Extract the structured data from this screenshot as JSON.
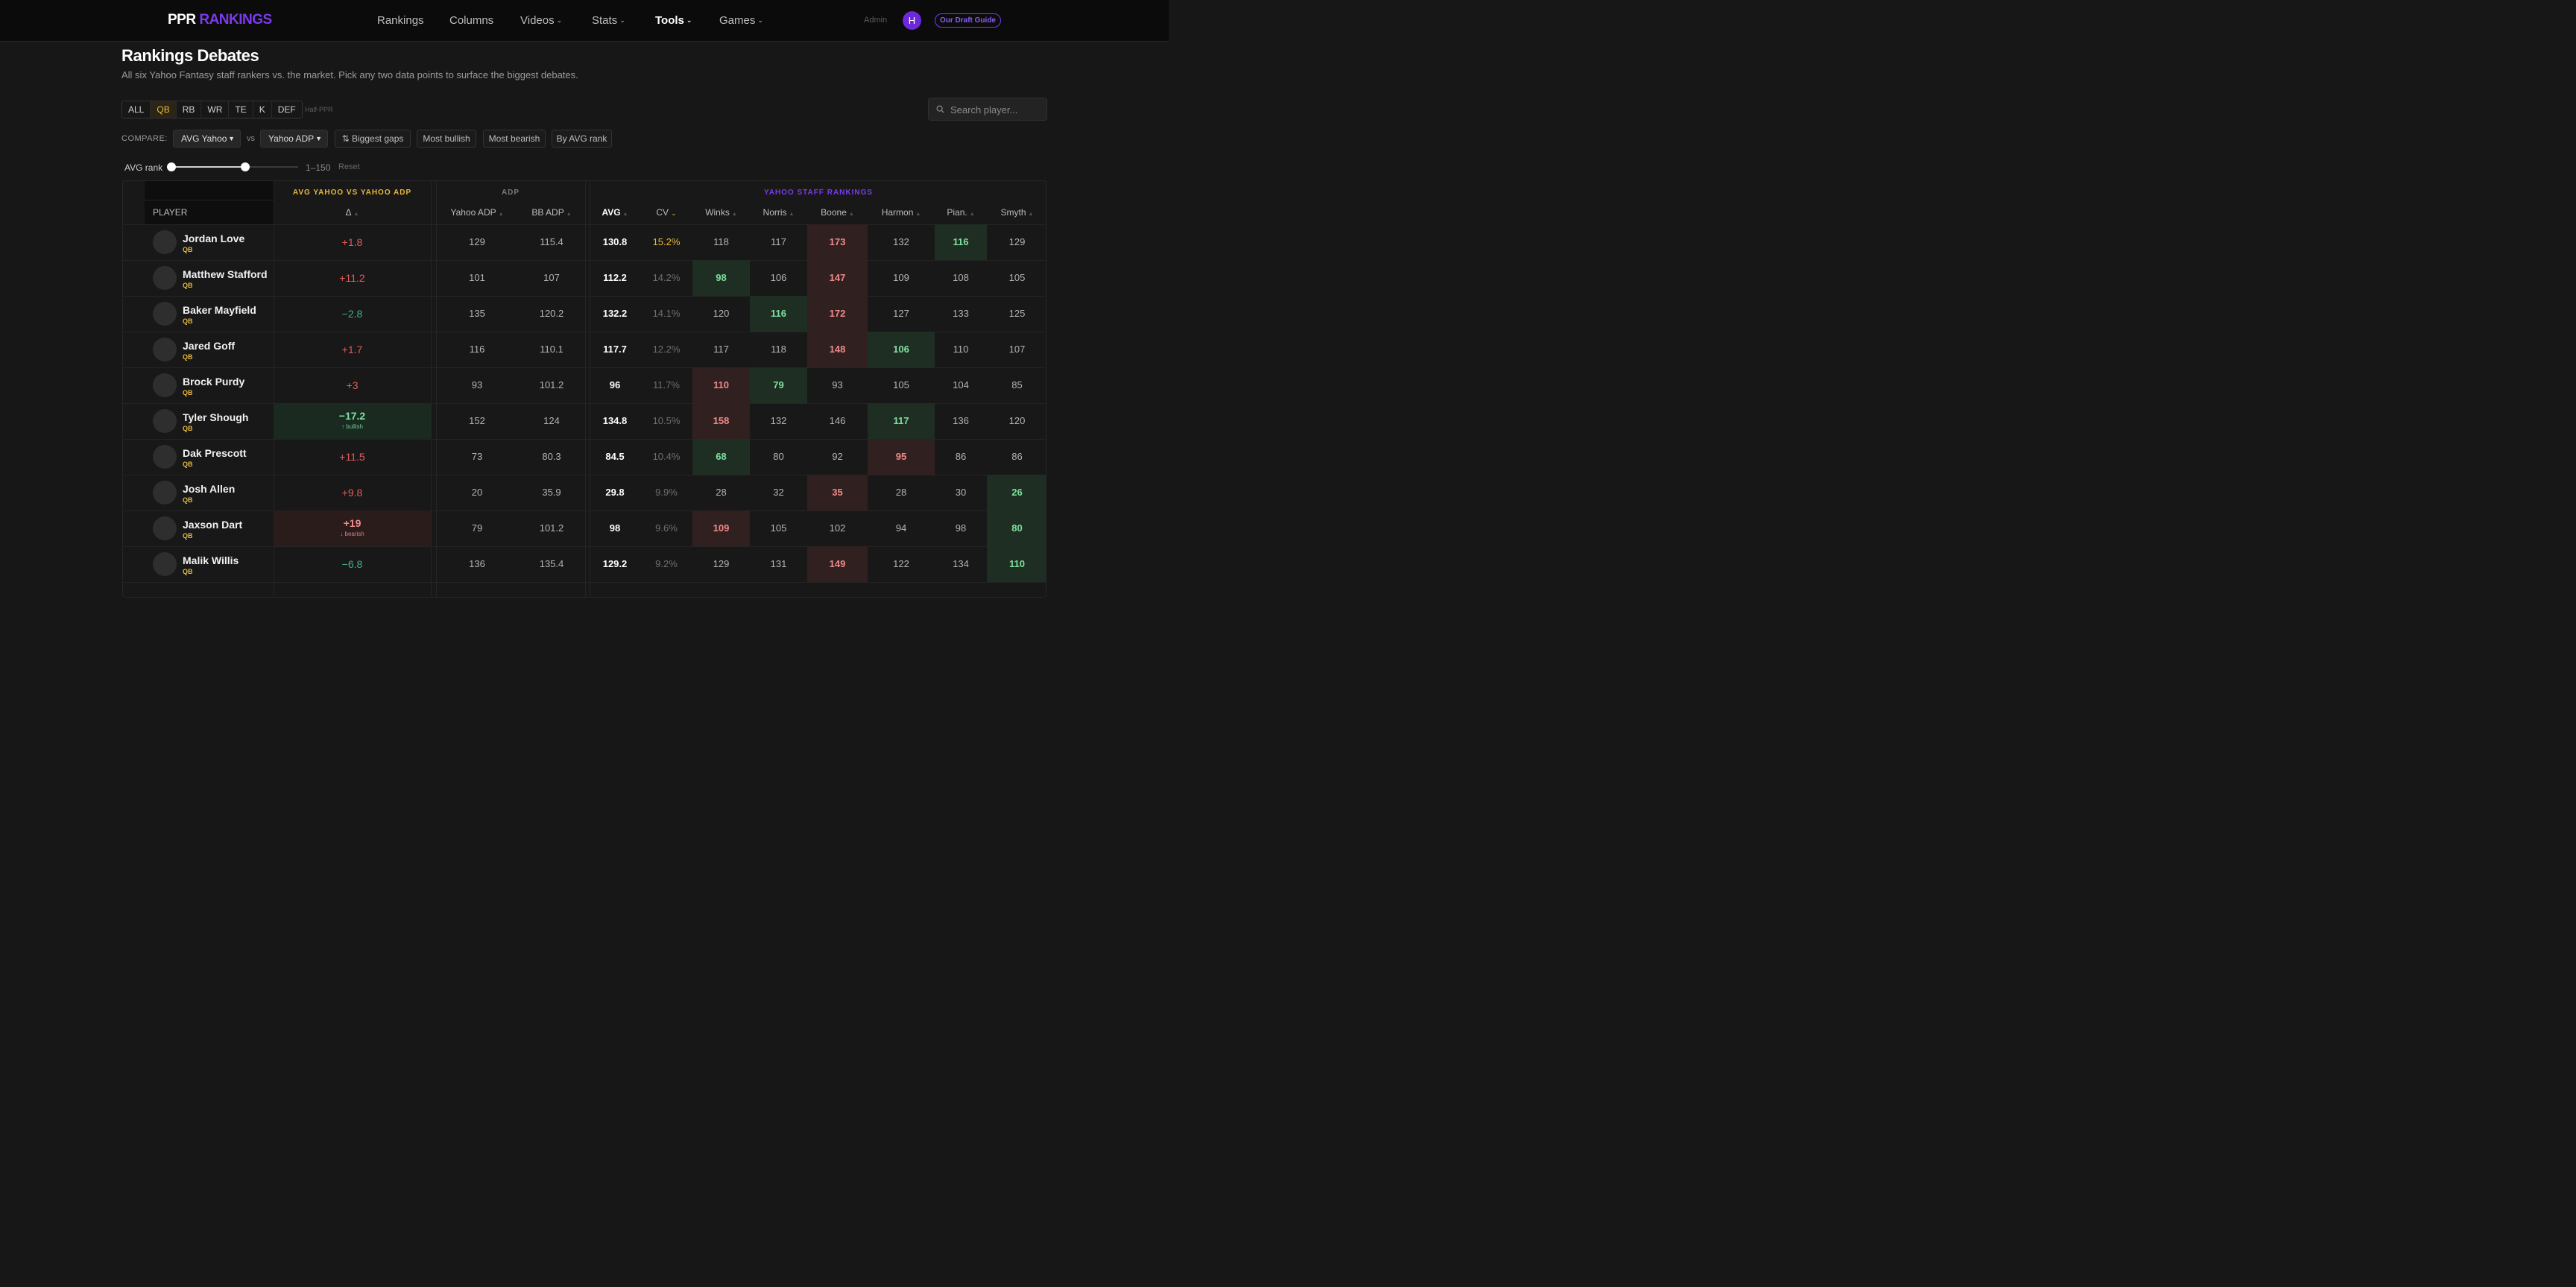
{
  "app": {
    "logo_a": "PPR",
    "logo_b": "RANKINGS"
  },
  "nav": [
    {
      "label": "Rankings",
      "has_menu": false
    },
    {
      "label": "Columns",
      "has_menu": false
    },
    {
      "label": "Videos",
      "has_menu": true
    },
    {
      "label": "Stats",
      "has_menu": true
    },
    {
      "label": "Tools",
      "has_menu": true
    },
    {
      "label": "Games",
      "has_menu": true
    }
  ],
  "header_right": {
    "admin": "Admin",
    "avatar": "H",
    "guide": "Our Draft Guide"
  },
  "page": {
    "title": "Rankings Debates",
    "subtitle": "All six Yahoo Fantasy staff rankers vs. the market. Pick any two data points to surface the biggest debates."
  },
  "filters": {
    "positions": [
      "ALL",
      "QB",
      "RB",
      "WR",
      "TE",
      "K",
      "DEF"
    ],
    "active_position": "QB",
    "scoring": "Half-PPR",
    "search_placeholder": "Search player..."
  },
  "compare": {
    "label": "COMPARE:",
    "left": "AVG Yahoo",
    "vs": "vs",
    "right": "Yahoo ADP",
    "sorts": [
      "Biggest gaps",
      "Most bullish",
      "Most bearish",
      "By AVG rank"
    ]
  },
  "range": {
    "label": "AVG rank",
    "value": "1–150",
    "reset": "Reset",
    "low_fraction": 0.0,
    "high_fraction": 0.58
  },
  "table": {
    "groups": {
      "delta": "AVG YAHOO VS YAHOO ADP",
      "adp": "ADP",
      "staff": "YAHOO STAFF RANKINGS"
    },
    "columns": {
      "player": "PLAYER",
      "delta": "Δ",
      "yahoo_adp": "Yahoo ADP",
      "bb_adp": "BB ADP",
      "avg": "AVG",
      "cv": "CV",
      "winks": "Winks",
      "norris": "Norris",
      "boone": "Boone",
      "harmon": "Harmon",
      "pian": "Pian.",
      "smyth": "Smyth"
    },
    "rows": [
      {
        "name": "Jordan Love",
        "pos": "QB",
        "delta": "+1.8",
        "note": "",
        "yahoo_adp": "129",
        "bb_adp": "115.4",
        "avg": "130.8",
        "cv": "15.2%",
        "rankers": [
          "118",
          "117",
          "173",
          "132",
          "116",
          "129"
        ]
      },
      {
        "name": "Matthew Stafford",
        "pos": "QB",
        "delta": "+11.2",
        "note": "",
        "yahoo_adp": "101",
        "bb_adp": "107",
        "avg": "112.2",
        "cv": "14.2%",
        "rankers": [
          "98",
          "106",
          "147",
          "109",
          "108",
          "105"
        ]
      },
      {
        "name": "Baker Mayfield",
        "pos": "QB",
        "delta": "−2.8",
        "note": "",
        "yahoo_adp": "135",
        "bb_adp": "120.2",
        "avg": "132.2",
        "cv": "14.1%",
        "rankers": [
          "120",
          "116",
          "172",
          "127",
          "133",
          "125"
        ]
      },
      {
        "name": "Jared Goff",
        "pos": "QB",
        "delta": "+1.7",
        "note": "",
        "yahoo_adp": "116",
        "bb_adp": "110.1",
        "avg": "117.7",
        "cv": "12.2%",
        "rankers": [
          "117",
          "118",
          "148",
          "106",
          "110",
          "107"
        ]
      },
      {
        "name": "Brock Purdy",
        "pos": "QB",
        "delta": "+3",
        "note": "",
        "yahoo_adp": "93",
        "bb_adp": "101.2",
        "avg": "96",
        "cv": "11.7%",
        "rankers": [
          "110",
          "79",
          "93",
          "105",
          "104",
          "85"
        ]
      },
      {
        "name": "Tyler Shough",
        "pos": "QB",
        "delta": "−17.2",
        "note": "↑ bullish",
        "yahoo_adp": "152",
        "bb_adp": "124",
        "avg": "134.8",
        "cv": "10.5%",
        "rankers": [
          "158",
          "132",
          "146",
          "117",
          "136",
          "120"
        ]
      },
      {
        "name": "Dak Prescott",
        "pos": "QB",
        "delta": "+11.5",
        "note": "",
        "yahoo_adp": "73",
        "bb_adp": "80.3",
        "avg": "84.5",
        "cv": "10.4%",
        "rankers": [
          "68",
          "80",
          "92",
          "95",
          "86",
          "86"
        ]
      },
      {
        "name": "Josh Allen",
        "pos": "QB",
        "delta": "+9.8",
        "note": "",
        "yahoo_adp": "20",
        "bb_adp": "35.9",
        "avg": "29.8",
        "cv": "9.9%",
        "rankers": [
          "28",
          "32",
          "35",
          "28",
          "30",
          "26"
        ]
      },
      {
        "name": "Jaxson Dart",
        "pos": "QB",
        "delta": "+19",
        "note": "↓ bearish",
        "yahoo_adp": "79",
        "bb_adp": "101.2",
        "avg": "98",
        "cv": "9.6%",
        "rankers": [
          "109",
          "105",
          "102",
          "94",
          "98",
          "80"
        ]
      },
      {
        "name": "Malik Willis",
        "pos": "QB",
        "delta": "−6.8",
        "note": "",
        "yahoo_adp": "136",
        "bb_adp": "135.4",
        "avg": "129.2",
        "cv": "9.2%",
        "rankers": [
          "129",
          "131",
          "149",
          "122",
          "134",
          "110"
        ]
      }
    ]
  },
  "colors": {
    "accent": "#7c3aed",
    "gold": "#e8b93e",
    "positive": "#7ee0a0",
    "negative": "#f08a8a",
    "delta_pos": "#e05c5c",
    "delta_neg": "#3fb27f"
  }
}
